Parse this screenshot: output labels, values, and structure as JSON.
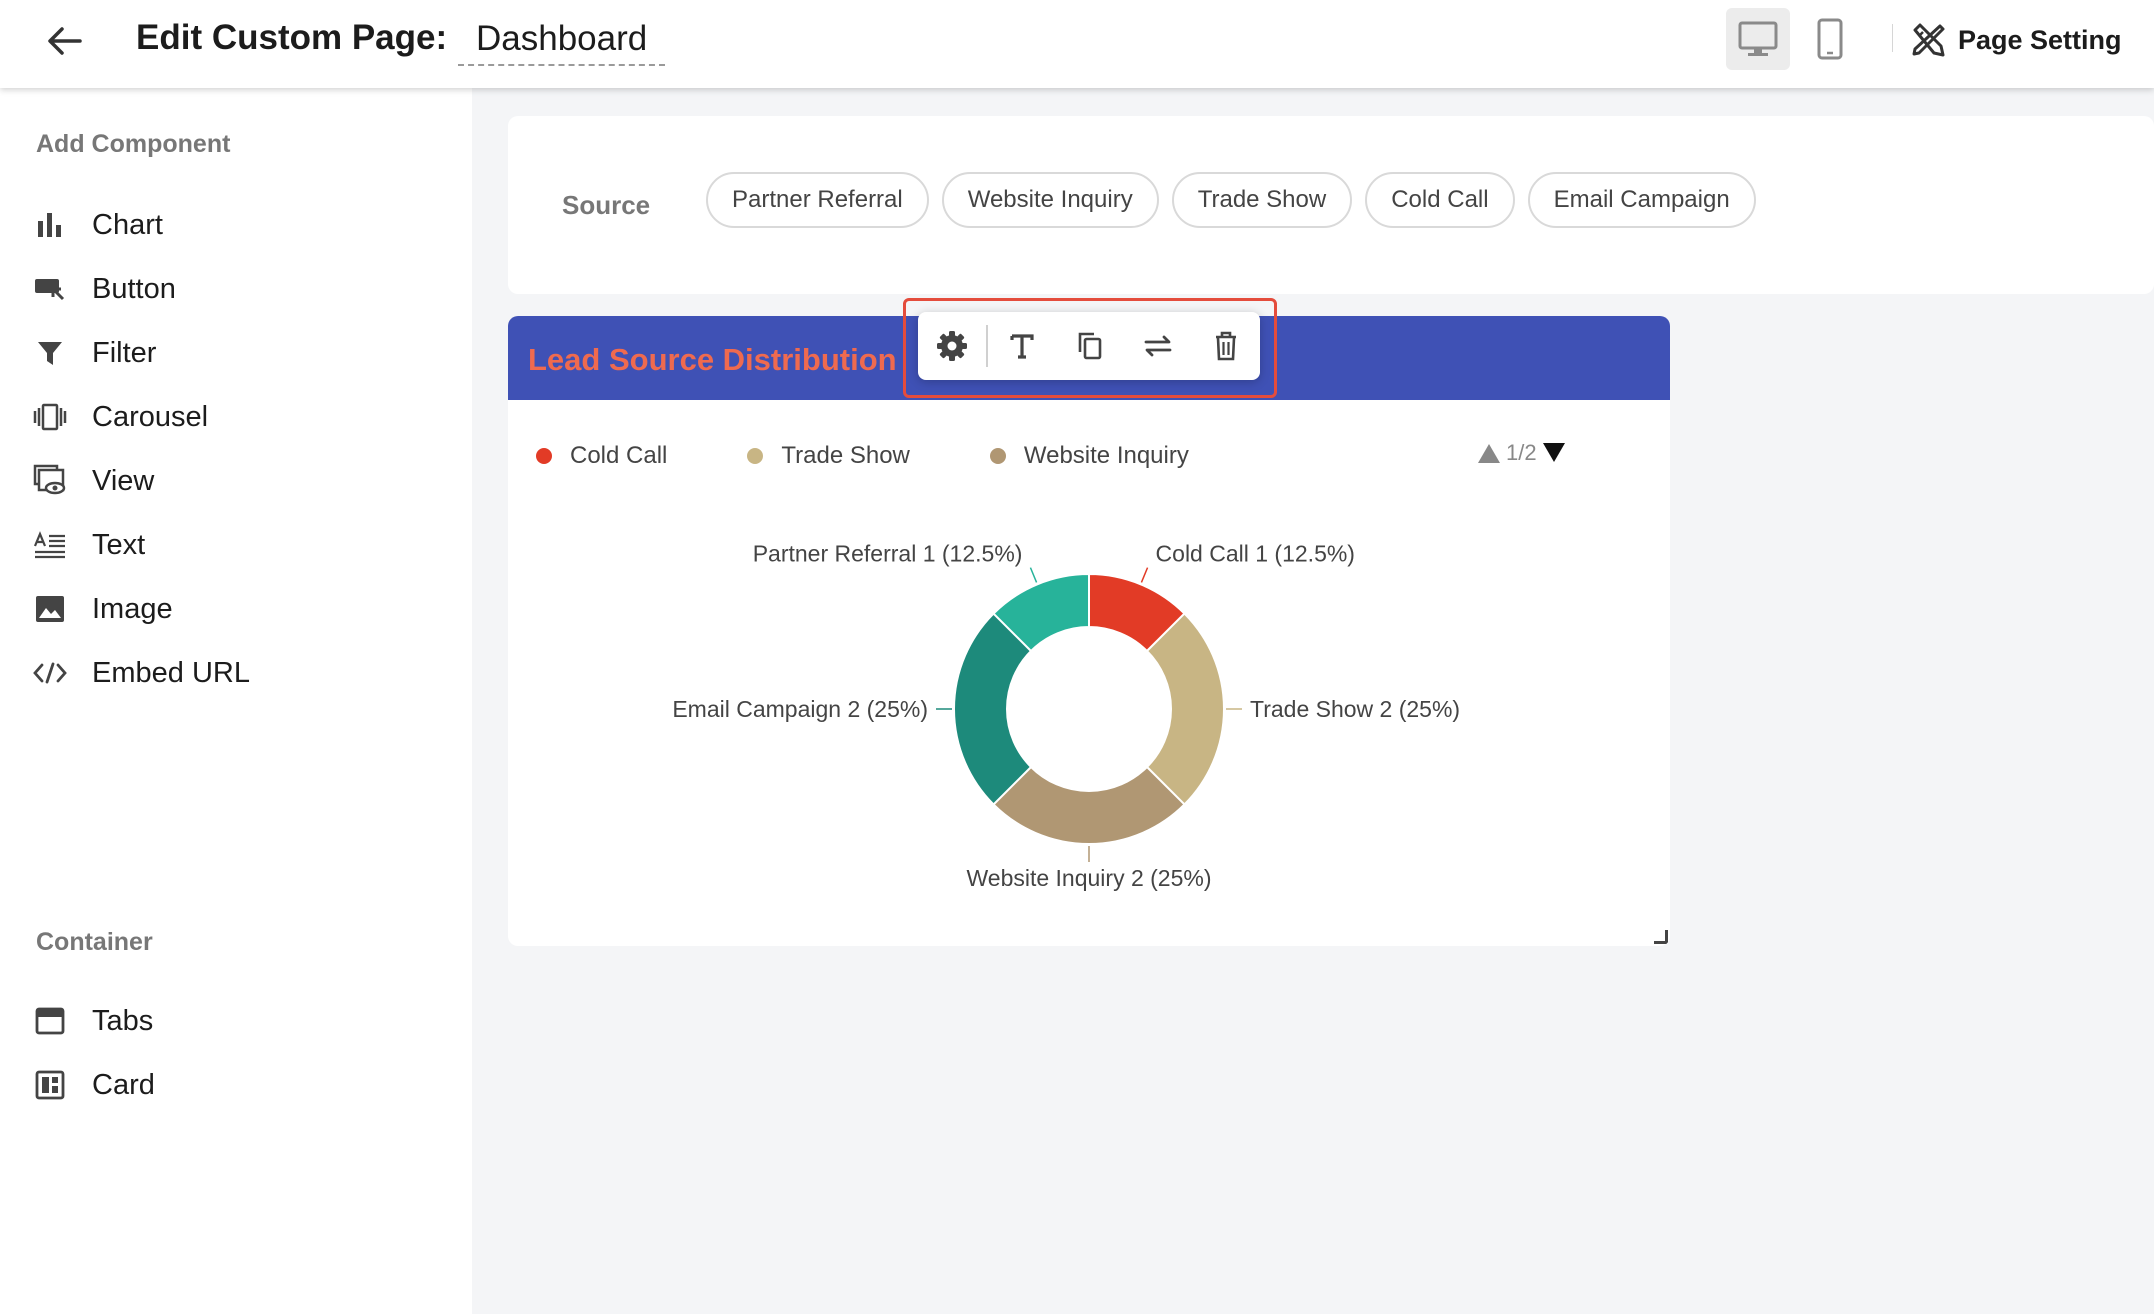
{
  "header": {
    "title": "Edit Custom Page:",
    "page_name": "Dashboard",
    "page_setting_label": "Page Setting",
    "icons": [
      "arrow-left-icon",
      "desktop-icon",
      "mobile-icon",
      "tools-icon"
    ]
  },
  "sidebar": {
    "add_component_title": "Add Component",
    "components": [
      {
        "label": "Chart",
        "icon": "bar-chart-icon"
      },
      {
        "label": "Button",
        "icon": "button-cursor-icon"
      },
      {
        "label": "Filter",
        "icon": "filter-icon"
      },
      {
        "label": "Carousel",
        "icon": "carousel-icon"
      },
      {
        "label": "View",
        "icon": "view-icon"
      },
      {
        "label": "Text",
        "icon": "text-icon"
      },
      {
        "label": "Image",
        "icon": "image-icon"
      },
      {
        "label": "Embed URL",
        "icon": "code-icon"
      }
    ],
    "container_title": "Container",
    "containers": [
      {
        "label": "Tabs",
        "icon": "tabs-icon"
      },
      {
        "label": "Card",
        "icon": "card-icon"
      }
    ]
  },
  "filter": {
    "label": "Source",
    "chips": [
      "Partner Referral",
      "Website Inquiry",
      "Trade Show",
      "Cold Call",
      "Email Campaign"
    ]
  },
  "chart_card": {
    "title": "Lead Source Distribution",
    "pager": "1/2",
    "toolbar_icons": [
      "gear-icon",
      "text-format-icon",
      "copy-icon",
      "swap-icon",
      "trash-icon"
    ],
    "colors": {
      "header": "#3f51b5",
      "title": "#ef6a4f",
      "selection": "#e44c3c"
    }
  },
  "chart_data": {
    "type": "pie",
    "variant": "donut",
    "legend_page": "1/2",
    "legend": [
      "Cold Call",
      "Trade Show",
      "Website Inquiry"
    ],
    "slices": [
      {
        "label": "Cold Call",
        "value": 1,
        "percent": "12.5%",
        "color": "#e23b26"
      },
      {
        "label": "Trade Show",
        "value": 2,
        "percent": "25%",
        "color": "#c8b584"
      },
      {
        "label": "Website Inquiry",
        "value": 2,
        "percent": "25%",
        "color": "#b09773"
      },
      {
        "label": "Email Campaign",
        "value": 2,
        "percent": "25%",
        "color": "#1d8a7b"
      },
      {
        "label": "Partner Referral",
        "value": 1,
        "percent": "12.5%",
        "color": "#27b39a"
      }
    ]
  }
}
